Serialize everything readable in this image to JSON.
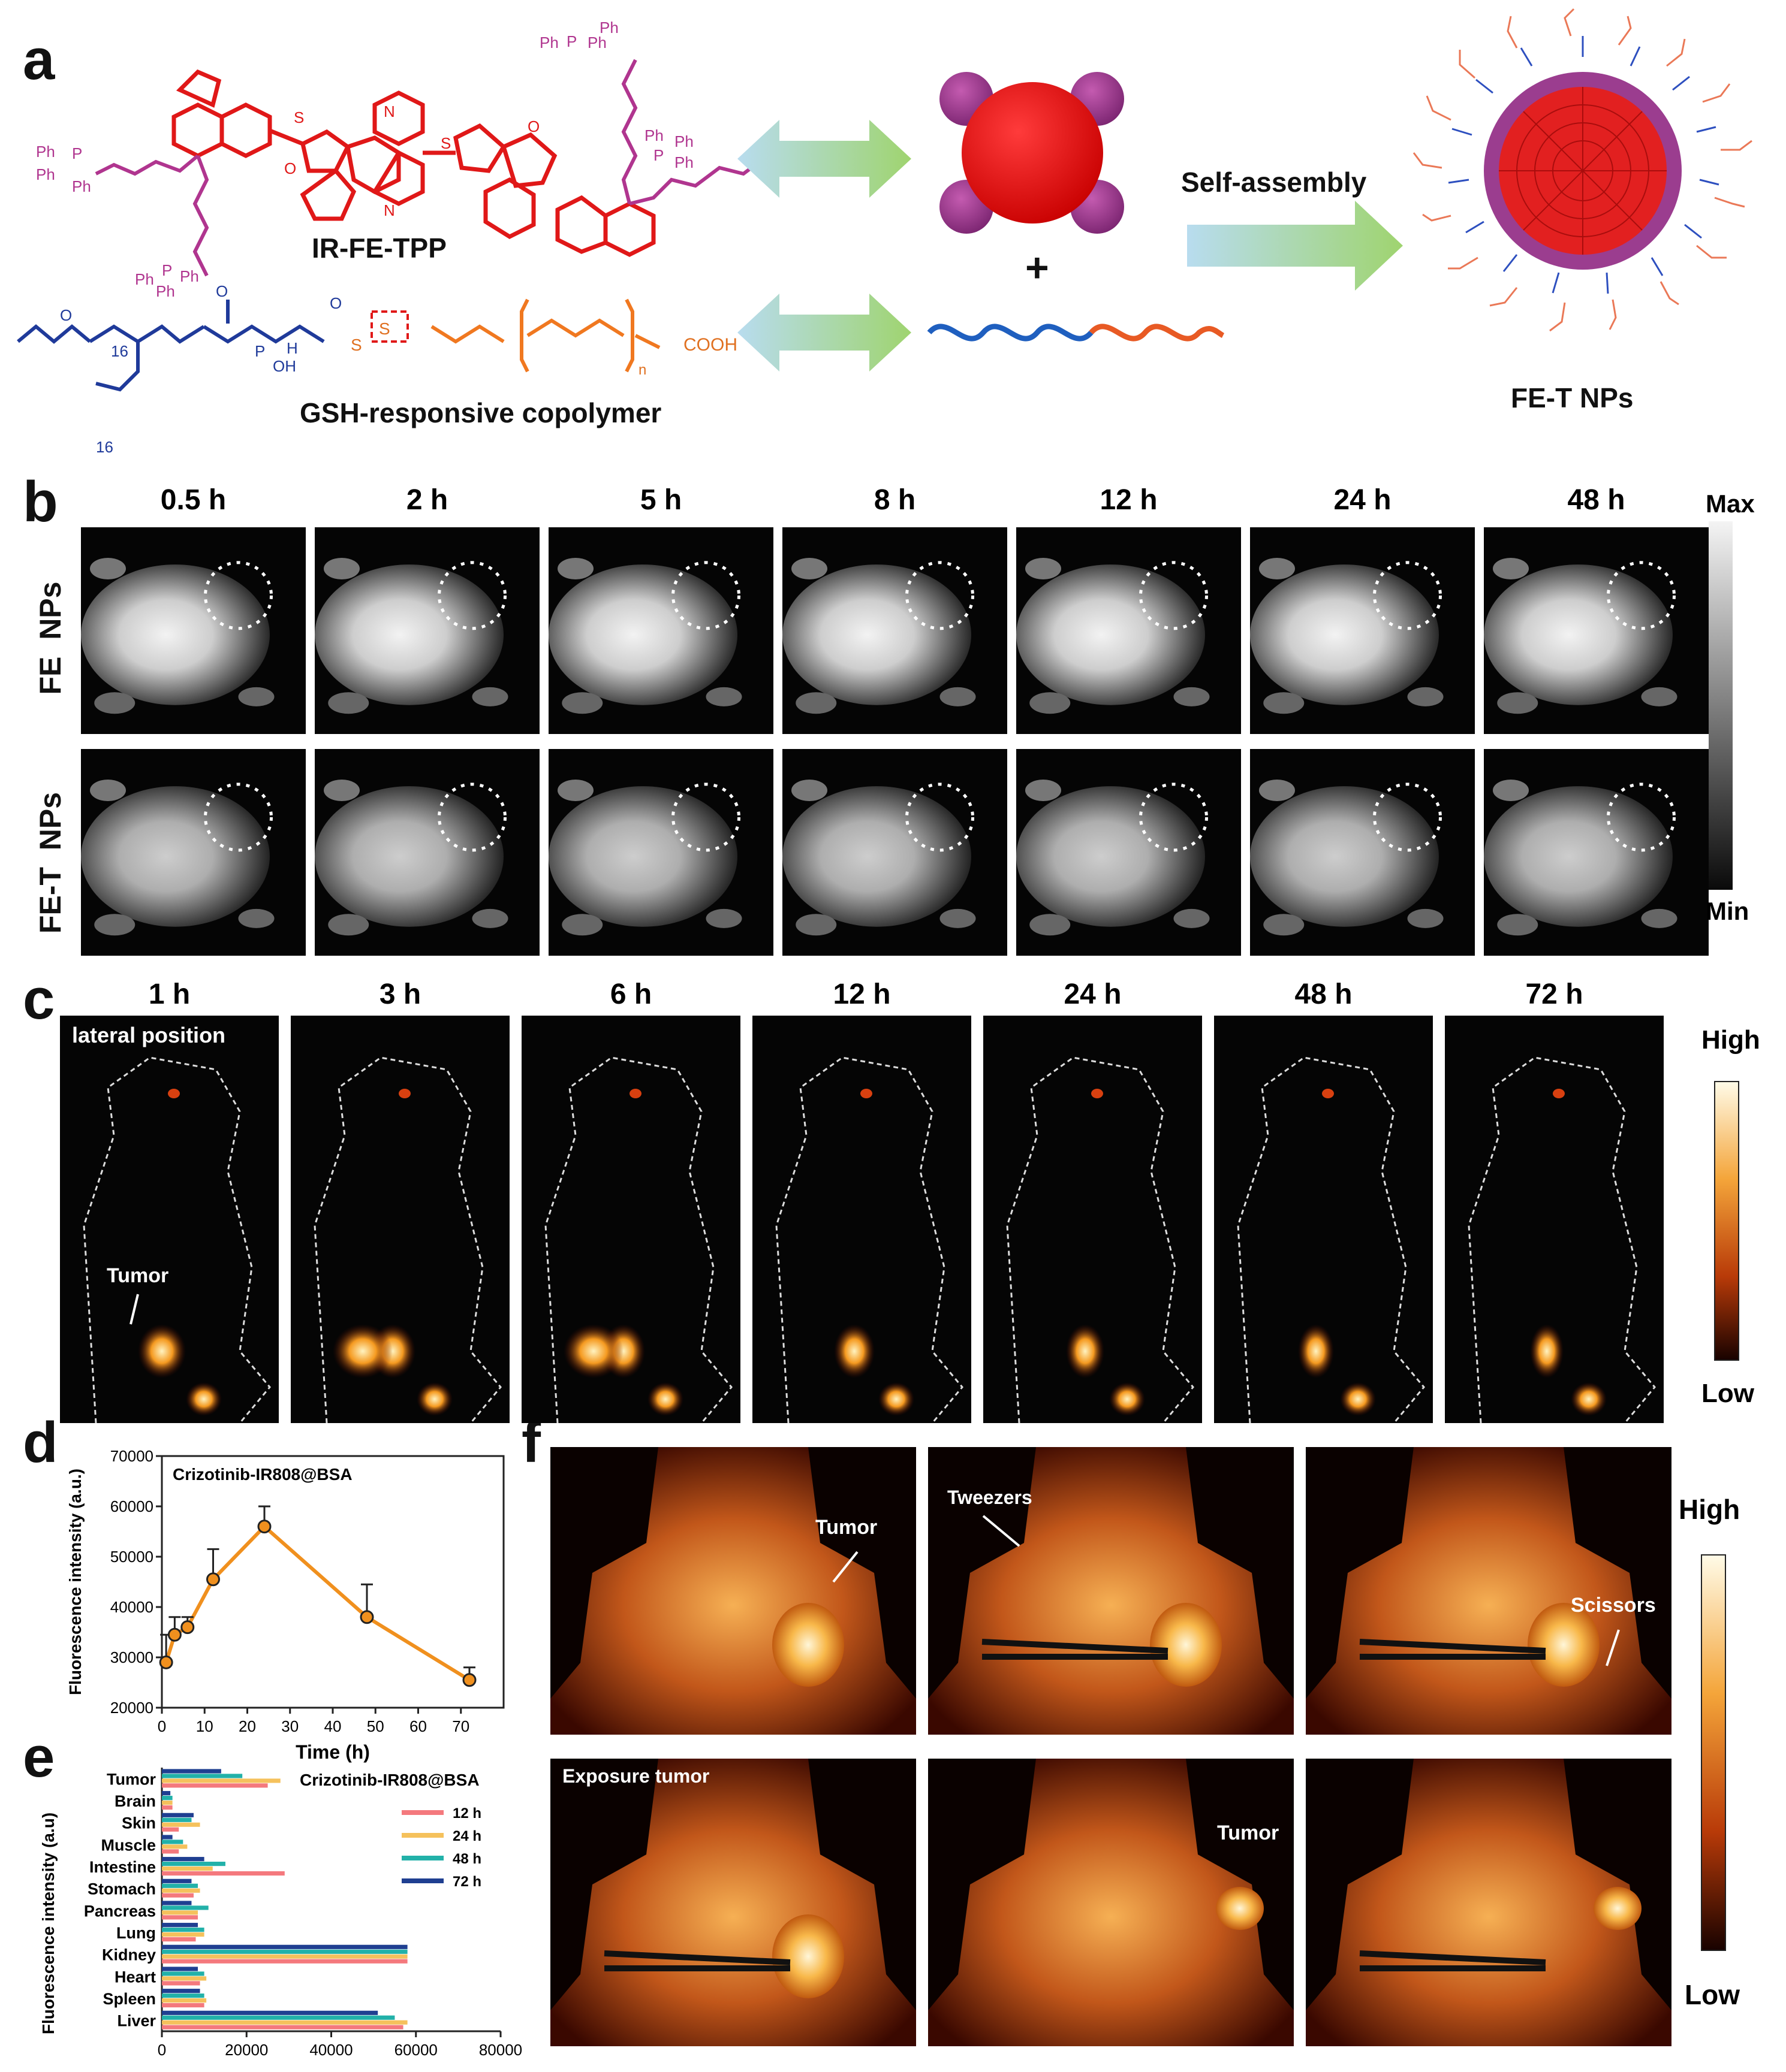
{
  "panels": {
    "a": "a",
    "b": "b",
    "c": "c",
    "d": "d",
    "e": "e",
    "f": "f"
  },
  "panel_a": {
    "compound1": "IR-FE-TPP",
    "compound2": "GSH-responsive copolymer",
    "product": "FE-T NPs",
    "process": "Self-assembly",
    "plus": "+",
    "ph": "Ph",
    "cooh": "COOH",
    "n": "n",
    "sub16": "16",
    "oh": "OH",
    "nh": "H",
    "s": "S",
    "o": "O",
    "p": "P",
    "nn": "N",
    "plus_charge": "+"
  },
  "panel_b": {
    "times": [
      "0.5 h",
      "2 h",
      "5 h",
      "8 h",
      "12 h",
      "24 h",
      "48 h"
    ],
    "rows": [
      "FE  NPs",
      "FE-T  NPs"
    ],
    "scale_max": "Max",
    "scale_min": "Min",
    "colors": {
      "scale_top": "#f4f4f4",
      "scale_bottom": "#0a0a0a"
    }
  },
  "panel_c": {
    "times": [
      "1 h",
      "3 h",
      "6 h",
      "12 h",
      "24 h",
      "48 h",
      "72 h"
    ],
    "position_label": "lateral position",
    "tumor_label": "Tumor",
    "scale_high": "High",
    "scale_low": "Low",
    "colors": {
      "hot_high": "#fffbe8",
      "hot_mid": "#f08a1c",
      "hot_low": "#180200"
    }
  },
  "panel_d": {
    "chart_data": {
      "type": "line",
      "title": "Crizotinib-IR808@BSA",
      "xlabel": "Time (h)",
      "ylabel": "Fluorescence intensity (a.u.)",
      "x": [
        1,
        3,
        6,
        12,
        24,
        48,
        72
      ],
      "y": [
        29000,
        34500,
        36000,
        45500,
        56000,
        38000,
        25500
      ],
      "err": [
        5500,
        3500,
        2000,
        6000,
        4000,
        6500,
        2500
      ],
      "xlim": [
        0,
        80
      ],
      "ylim": [
        20000,
        70000
      ],
      "xticks": [
        "0",
        "10",
        "20",
        "30",
        "40",
        "50",
        "60",
        "70"
      ],
      "yticks": [
        "20000",
        "30000",
        "40000",
        "50000",
        "60000",
        "70000"
      ],
      "color": "#f0901e"
    }
  },
  "panel_e": {
    "chart_data": {
      "type": "bar",
      "orientation": "horizontal",
      "title": "Crizotinib-IR808@BSA",
      "ylabel": "Fluorescence intensity (a.u)",
      "categories": [
        "Tumor",
        "Brain",
        "Skin",
        "Muscle",
        "Intestine",
        "Stomach",
        "Pancreas",
        "Lung",
        "Kidney",
        "Heart",
        "Spleen",
        "Liver"
      ],
      "series": [
        {
          "name": "12 h",
          "color": "#f4797d",
          "values": [
            25000,
            2500,
            4000,
            4000,
            29000,
            7500,
            8500,
            8000,
            58000,
            9000,
            10000,
            57000
          ]
        },
        {
          "name": "24 h",
          "color": "#f5c15c",
          "values": [
            28000,
            2500,
            9000,
            6000,
            12000,
            9000,
            8500,
            10000,
            58000,
            10500,
            10500,
            58000
          ]
        },
        {
          "name": "48 h",
          "color": "#22b1a9",
          "values": [
            19000,
            2500,
            7000,
            5000,
            15000,
            8500,
            11000,
            10000,
            58000,
            10000,
            10000,
            55000
          ]
        },
        {
          "name": "72 h",
          "color": "#1f3f91",
          "values": [
            14000,
            2000,
            7500,
            2500,
            10000,
            7000,
            7000,
            8500,
            58000,
            8500,
            9000,
            51000
          ]
        }
      ],
      "xlim": [
        0,
        80000
      ],
      "xticks": [
        "0",
        "20000",
        "40000",
        "60000",
        "80000"
      ]
    }
  },
  "panel_f": {
    "labels": {
      "tumor": "Tumor",
      "tweezers": "Tweezers",
      "scissors": "Scissors",
      "exposure": "Exposure tumor",
      "tumor2": "Tumor"
    },
    "scale_high": "High",
    "scale_low": "Low"
  }
}
